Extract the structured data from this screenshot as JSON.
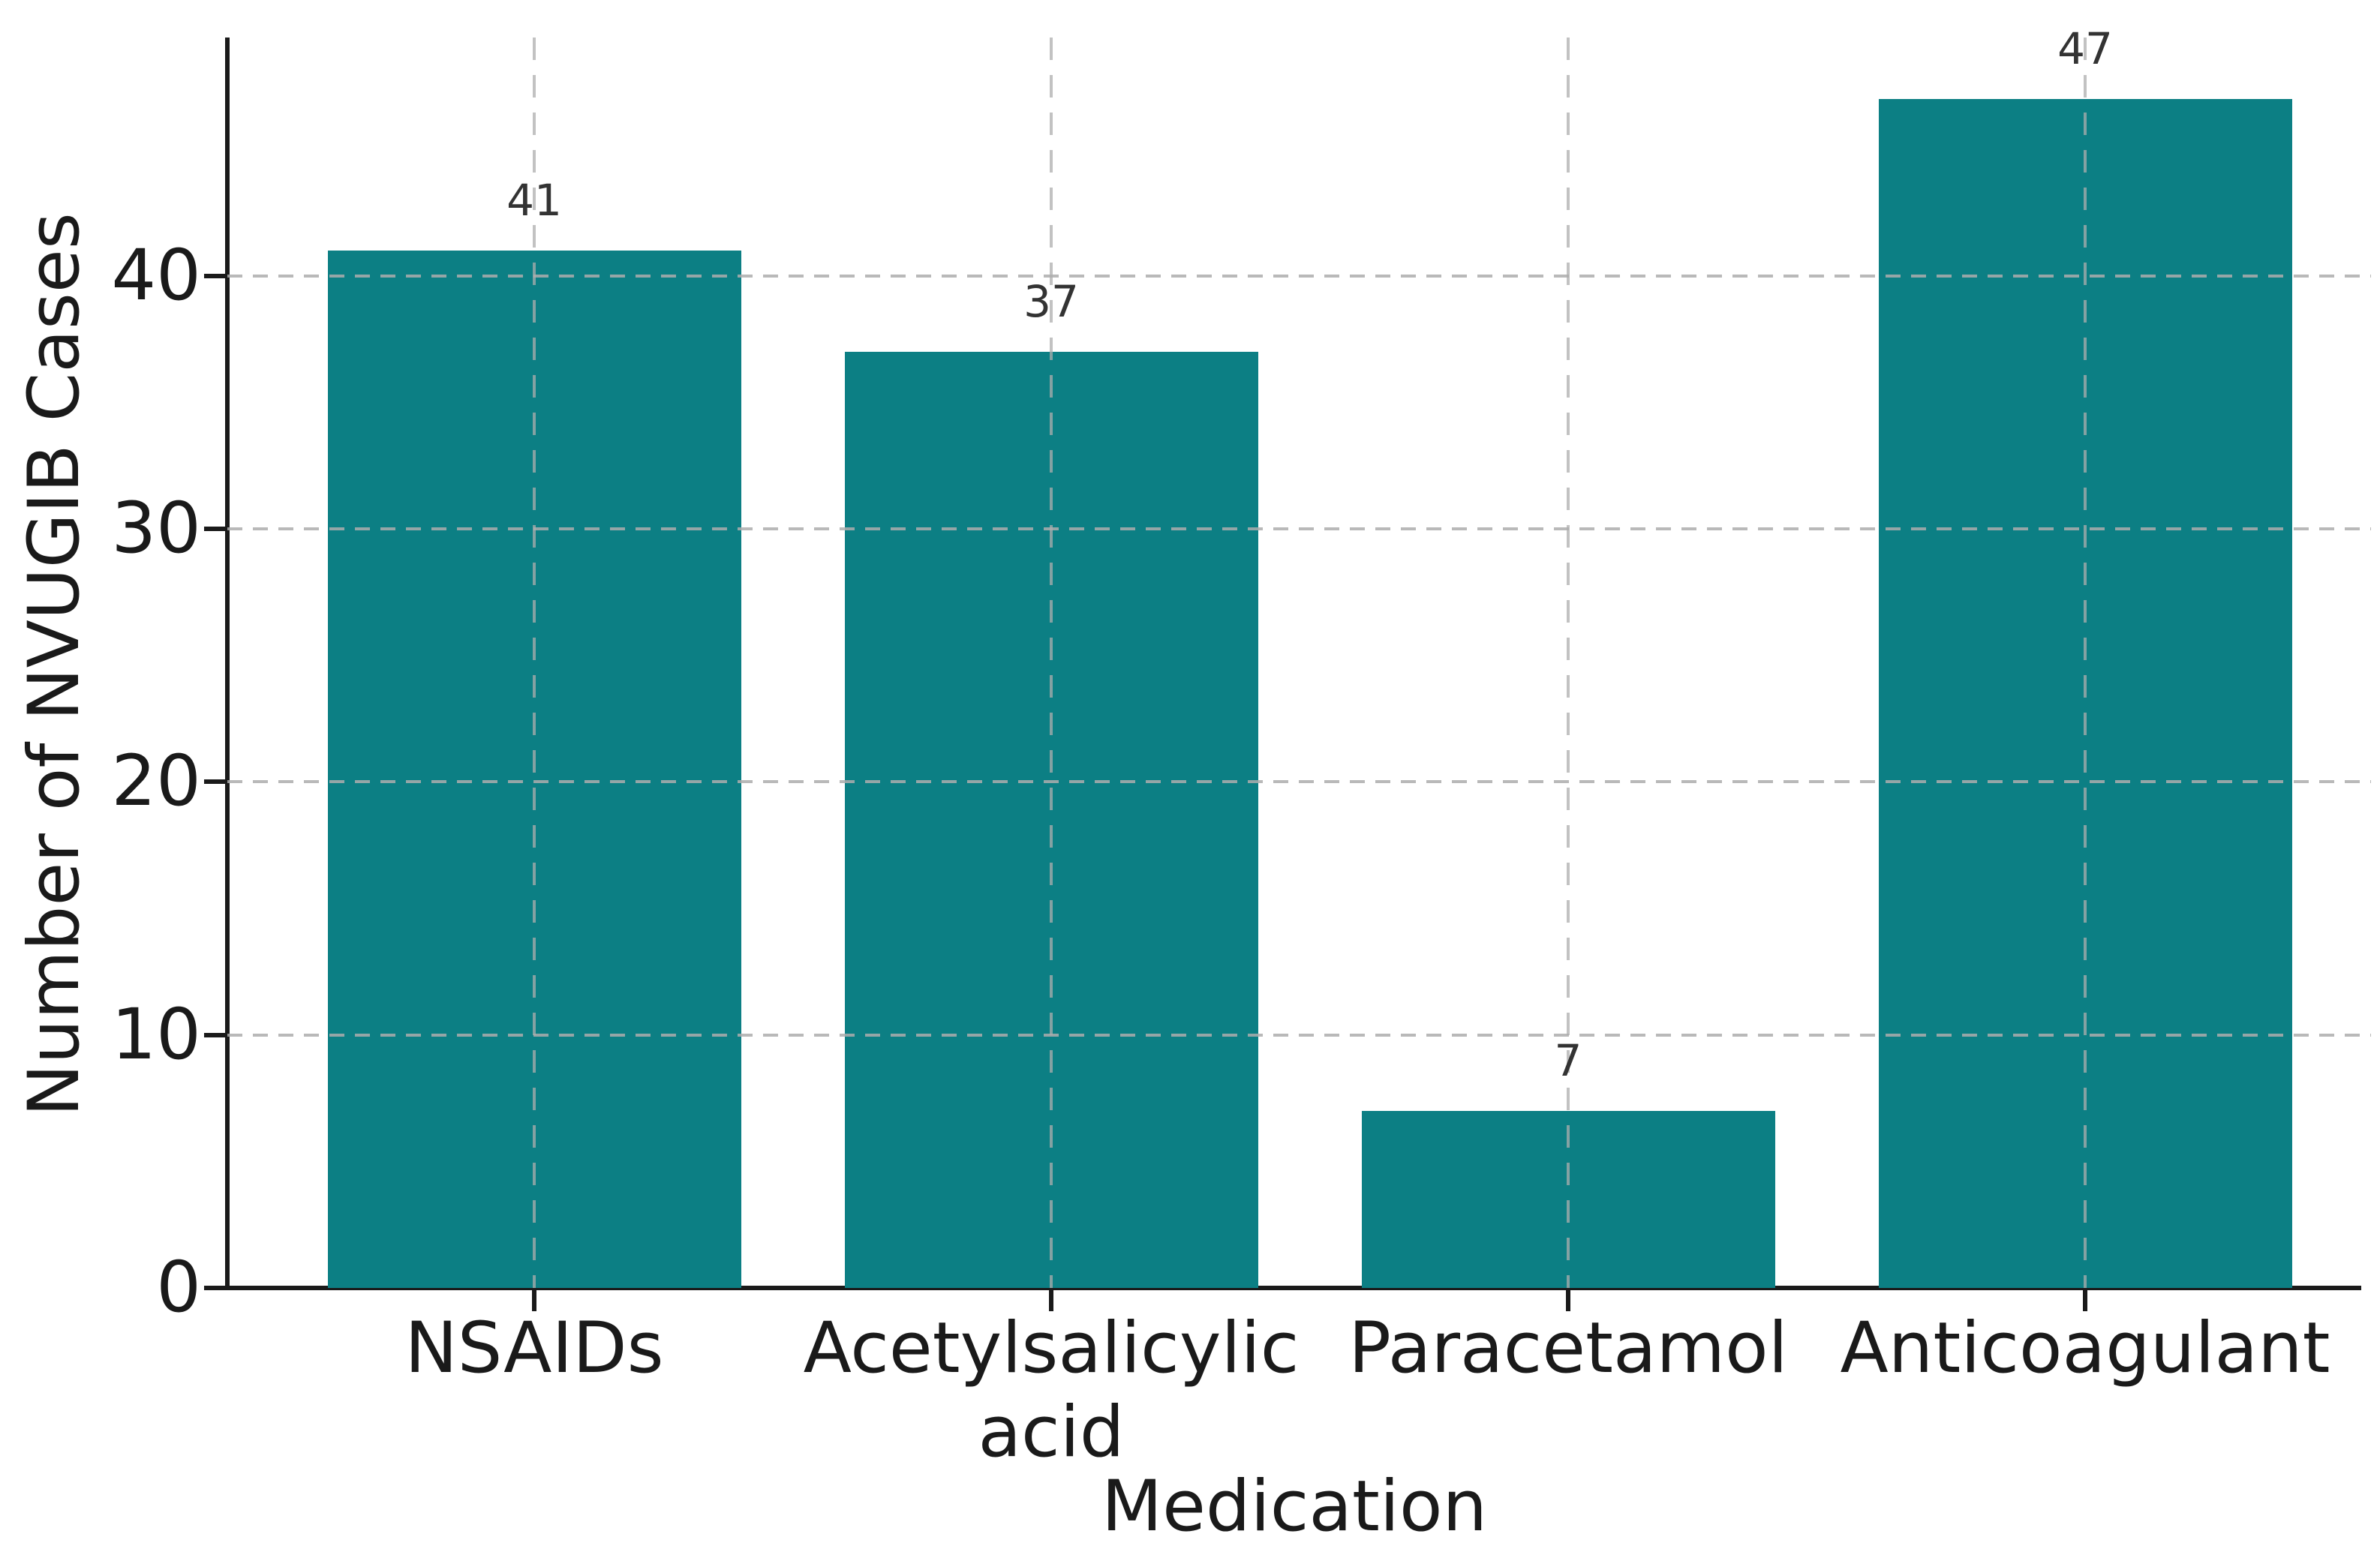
{
  "chart_data": {
    "type": "bar",
    "title": "",
    "xlabel": "Medication",
    "ylabel": "Number of NVUGIB Cases",
    "categories": [
      "NSAIDs",
      "Acetylsalicylic acid",
      "Paracetamol",
      "Anticoagulant"
    ],
    "category_tick_lines": [
      [
        "NSAIDs"
      ],
      [
        "Acetylsalicylic",
        "acid"
      ],
      [
        "Paracetamol"
      ],
      [
        "Anticoagulant"
      ]
    ],
    "values": [
      41,
      37,
      7,
      47
    ],
    "bar_value_labels": [
      "41",
      "37",
      "7",
      "47"
    ],
    "yticks": [
      0,
      10,
      20,
      30,
      40
    ],
    "ytick_labels": [
      "0",
      "10",
      "20",
      "30",
      "40"
    ],
    "ylim": [
      0,
      49.3
    ],
    "grid": "dashed gridlines on both axes, drawn over bars",
    "legend": "none",
    "colors": {
      "bar": "#0c7f84",
      "grid": "#adadad",
      "spine": "#1a1a1a",
      "tick_text": "#1a1a1a",
      "value_label_text": "#333333",
      "background": "#ffffff"
    }
  }
}
